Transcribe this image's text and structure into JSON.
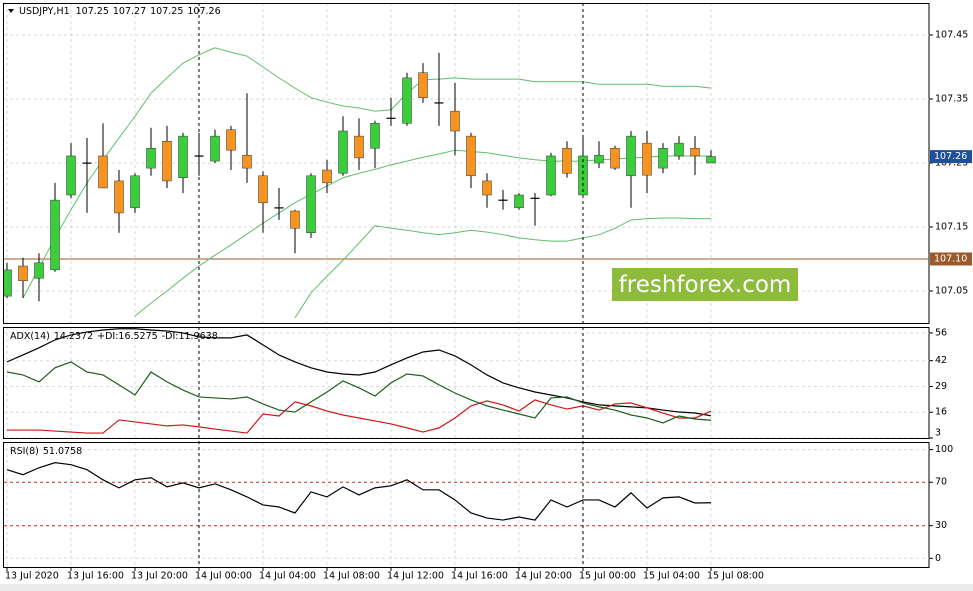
{
  "chart_data": [
    {
      "type": "candlestick",
      "symbol": "USDJPY,H1",
      "categories": [
        "13 Jul 2020",
        null,
        null,
        null,
        "13 Jul 16:00",
        null,
        null,
        null,
        "13 Jul 20:00",
        null,
        null,
        null,
        "14 Jul 00:00",
        null,
        null,
        null,
        "14 Jul 04:00",
        null,
        null,
        null,
        "14 Jul 08:00",
        null,
        null,
        null,
        "14 Jul 12:00",
        null,
        null,
        null,
        "14 Jul 16:00",
        null,
        null,
        null,
        "14 Jul 20:00",
        null,
        null,
        null,
        "15 Jul 00:00",
        null,
        null,
        null,
        "15 Jul 04:00",
        null,
        null,
        null,
        "15 Jul 08:00"
      ],
      "open": [
        107.042,
        107.089,
        107.07,
        107.083,
        107.2,
        107.25,
        107.261,
        107.222,
        107.18,
        107.242,
        107.284,
        107.227,
        107.261,
        107.253,
        107.302,
        107.262,
        107.23,
        107.18,
        107.175,
        107.141,
        107.239,
        107.234,
        107.292,
        107.273,
        107.32,
        107.312,
        107.391,
        107.344,
        107.331,
        107.292,
        107.222,
        107.192,
        107.18,
        107.195,
        107.2,
        107.273,
        107.2,
        107.25,
        107.273,
        107.23,
        107.281,
        107.242,
        107.261,
        107.273,
        107.25
      ],
      "high": [
        107.094,
        107.102,
        107.109,
        107.219,
        107.281,
        107.289,
        107.312,
        107.239,
        107.234,
        107.305,
        107.308,
        107.297,
        107.297,
        107.302,
        107.308,
        107.359,
        107.237,
        107.211,
        107.177,
        107.234,
        107.255,
        107.323,
        107.32,
        107.316,
        107.352,
        107.391,
        107.406,
        107.422,
        107.375,
        107.297,
        107.234,
        107.208,
        107.203,
        107.203,
        107.266,
        107.284,
        107.289,
        107.284,
        107.277,
        107.3,
        107.3,
        107.281,
        107.292,
        107.292,
        107.27
      ],
      "low": [
        107.039,
        107.039,
        107.034,
        107.08,
        107.195,
        107.172,
        107.211,
        107.141,
        107.172,
        107.23,
        107.211,
        107.203,
        107.23,
        107.25,
        107.239,
        107.219,
        107.141,
        107.161,
        107.109,
        107.133,
        107.203,
        107.23,
        107.239,
        107.242,
        107.308,
        107.308,
        107.344,
        107.308,
        107.262,
        107.211,
        107.18,
        107.177,
        107.177,
        107.152,
        107.198,
        107.227,
        107.198,
        107.242,
        107.239,
        107.18,
        107.203,
        107.234,
        107.255,
        107.231,
        107.25
      ],
      "close": [
        107.083,
        107.066,
        107.094,
        107.192,
        107.261,
        107.25,
        107.211,
        107.172,
        107.23,
        107.273,
        107.222,
        107.292,
        107.26,
        107.292,
        107.27,
        107.242,
        107.188,
        107.18,
        107.148,
        107.23,
        107.219,
        107.3,
        107.258,
        107.312,
        107.32,
        107.383,
        107.352,
        107.344,
        107.3,
        107.23,
        107.2,
        107.192,
        107.2,
        107.195,
        107.261,
        107.234,
        107.261,
        107.262,
        107.242,
        107.292,
        107.231,
        107.273,
        107.281,
        107.261,
        107.26
      ],
      "up_color": "#3ccd3c",
      "down_color": "#f7931e",
      "series": [
        {
          "color": "#5fbf6f",
          "values": [
            null,
            107.039,
            107.086,
            107.133,
            107.177,
            107.219,
            107.255,
            107.289,
            107.323,
            107.359,
            107.383,
            107.406,
            107.419,
            107.43,
            107.423,
            107.417,
            107.4,
            107.383,
            107.367,
            107.352,
            107.345,
            107.339,
            107.336,
            107.331,
            107.333,
            107.359,
            107.38,
            107.381,
            107.383,
            107.381,
            107.381,
            107.381,
            107.381,
            107.377,
            107.377,
            107.377,
            107.377,
            107.373,
            107.373,
            107.373,
            107.373,
            107.37,
            107.37,
            107.37,
            107.367
          ]
        },
        {
          "color": "#5fbf6f",
          "values": [
            null,
            null,
            null,
            null,
            null,
            null,
            null,
            null,
            107.011,
            107.031,
            107.05,
            107.07,
            107.089,
            107.106,
            107.122,
            107.139,
            107.156,
            107.172,
            107.188,
            107.201,
            107.214,
            107.227,
            107.234,
            107.24,
            107.247,
            107.253,
            107.259,
            107.264,
            107.27,
            107.268,
            107.266,
            107.262,
            107.258,
            107.255,
            107.253,
            107.253,
            107.253,
            107.255,
            107.256,
            107.258,
            107.259,
            107.261,
            107.261,
            107.261,
            107.261
          ]
        },
        {
          "color": "#5fbf6f",
          "values": [
            null,
            null,
            null,
            null,
            null,
            null,
            null,
            null,
            null,
            null,
            null,
            null,
            null,
            null,
            null,
            null,
            null,
            null,
            107.008,
            107.047,
            107.073,
            107.098,
            107.125,
            107.152,
            107.148,
            107.145,
            107.141,
            107.138,
            107.141,
            107.145,
            107.142,
            107.138,
            107.133,
            107.13,
            107.128,
            107.128,
            107.133,
            107.138,
            107.148,
            107.161,
            107.163,
            107.164,
            107.164,
            107.163,
            107.163
          ]
        }
      ],
      "ylim": [
        107.0,
        107.5
      ],
      "yticks": [
        107.05,
        107.15,
        107.25,
        107.35,
        107.45
      ],
      "grid": true,
      "hline": {
        "value": 107.1,
        "label": "107.10",
        "color": "#9b5a2a"
      },
      "last_price_color": "#1f4e9b"
    },
    {
      "type": "line",
      "series": [
        {
          "name": "ADX(14)",
          "color": "#000000",
          "values": [
            41.4,
            44.9,
            48.5,
            52.5,
            55.0,
            56.5,
            57.5,
            58.1,
            58.1,
            57.5,
            57.0,
            56.0,
            54.0,
            53.5,
            53.5,
            55.0,
            50.0,
            44.9,
            41.4,
            38.4,
            36.3,
            35.3,
            34.8,
            36.3,
            39.9,
            43.4,
            46.4,
            47.4,
            44.4,
            39.9,
            34.8,
            30.8,
            28.3,
            26.2,
            24.7,
            23.2,
            21.2,
            19.7,
            19.2,
            18.7,
            18.2,
            17.1,
            16.1,
            15.6,
            14.2372
          ]
        },
        {
          "name": "+DI:",
          "color": "#d01818",
          "values": [
            7.0,
            7.0,
            7.0,
            6.5,
            6.0,
            5.5,
            5.5,
            12.1,
            11.1,
            10.1,
            9.1,
            9.6,
            8.6,
            7.5,
            6.5,
            5.5,
            15.1,
            14.1,
            21.2,
            19.2,
            16.6,
            14.6,
            13.1,
            11.6,
            10.1,
            8.1,
            6.0,
            8.1,
            13.1,
            19.2,
            21.7,
            19.7,
            16.6,
            22.2,
            19.7,
            17.6,
            19.2,
            17.1,
            20.2,
            20.7,
            18.2,
            15.6,
            13.1,
            13.1,
            16.5275
          ]
        },
        {
          "name": "-DI:",
          "color": "#1e5e1e",
          "values": [
            36.3,
            34.8,
            31.3,
            38.4,
            41.4,
            36.3,
            34.8,
            29.8,
            24.7,
            36.3,
            31.3,
            27.2,
            23.7,
            23.2,
            22.7,
            23.7,
            20.2,
            17.1,
            16.1,
            21.2,
            26.2,
            31.8,
            28.3,
            24.2,
            30.8,
            35.3,
            34.3,
            29.8,
            25.7,
            22.2,
            19.2,
            17.1,
            15.1,
            13.1,
            23.2,
            23.7,
            20.7,
            18.7,
            17.1,
            14.6,
            13.1,
            10.6,
            14.1,
            12.6,
            11.9638
          ]
        }
      ],
      "ylim": [
        3,
        59
      ],
      "yticks": [
        3,
        16,
        29,
        42,
        56
      ],
      "grid": true
    },
    {
      "type": "line",
      "series": [
        {
          "name": "RSI(8)",
          "color": "#000000",
          "values": [
            81.5,
            76.9,
            83.3,
            88.0,
            86.1,
            81.5,
            72.2,
            64.8,
            72.2,
            74.1,
            65.7,
            69.4,
            64.8,
            68.5,
            63.0,
            56.5,
            49.1,
            47.2,
            41.7,
            61.1,
            56.5,
            65.7,
            58.3,
            64.8,
            66.7,
            72.2,
            63.0,
            63.0,
            53.7,
            41.7,
            37.0,
            35.2,
            38.0,
            35.2,
            53.7,
            47.2,
            53.7,
            53.7,
            47.2,
            60.2,
            46.3,
            55.6,
            56.5,
            50.9,
            51.0758
          ]
        }
      ],
      "ylim": [
        -8,
        107
      ],
      "yticks": [
        0,
        30,
        70,
        100
      ],
      "levels": [
        30,
        70
      ],
      "level_color": "#c83232",
      "grid": true
    }
  ],
  "watermark": "freshforex.com"
}
